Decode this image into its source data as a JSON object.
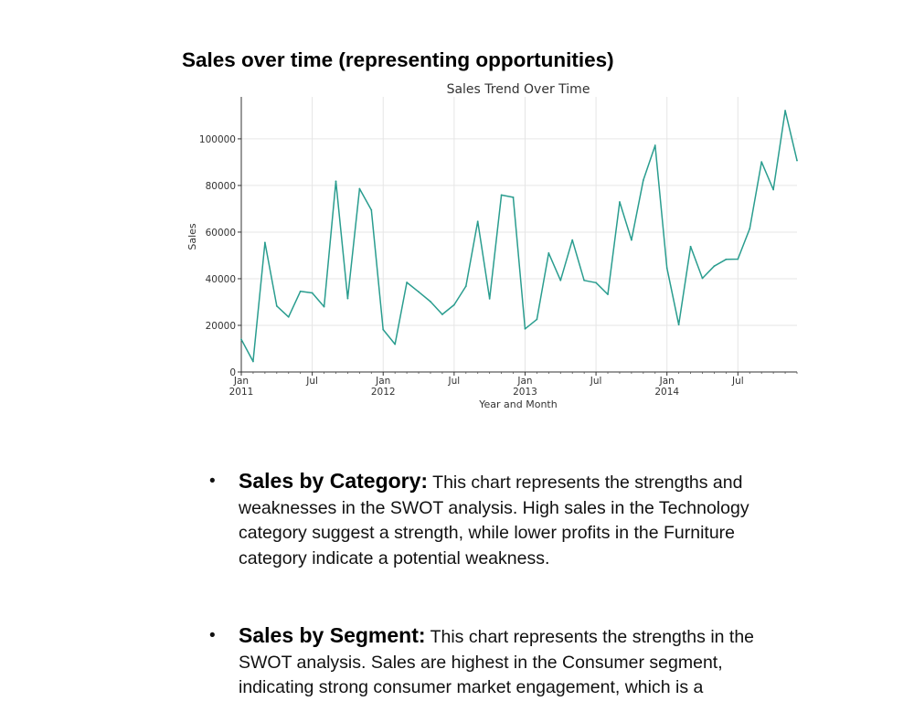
{
  "section_heading": "Sales over time (representing opportunities)",
  "chart_data": {
    "type": "line",
    "title": "Sales Trend Over Time",
    "xlabel": "Year and Month",
    "ylabel": "Sales",
    "x": [
      "2011-01",
      "2011-02",
      "2011-03",
      "2011-04",
      "2011-05",
      "2011-06",
      "2011-07",
      "2011-08",
      "2011-09",
      "2011-10",
      "2011-11",
      "2011-12",
      "2012-01",
      "2012-02",
      "2012-03",
      "2012-04",
      "2012-05",
      "2012-06",
      "2012-07",
      "2012-08",
      "2012-09",
      "2012-10",
      "2012-11",
      "2012-12",
      "2013-01",
      "2013-02",
      "2013-03",
      "2013-04",
      "2013-05",
      "2013-06",
      "2013-07",
      "2013-08",
      "2013-09",
      "2013-10",
      "2013-11",
      "2013-12",
      "2014-01",
      "2014-02",
      "2014-03",
      "2014-04",
      "2014-05",
      "2014-06",
      "2014-07",
      "2014-08",
      "2014-09",
      "2014-10",
      "2014-11",
      "2014-12"
    ],
    "series": [
      {
        "values": [
          14000,
          4500,
          55500,
          28300,
          23600,
          34600,
          33900,
          28000,
          81800,
          31500,
          78600,
          69500,
          18200,
          11900,
          38400,
          34400,
          30200,
          24700,
          28800,
          36800,
          64600,
          31400,
          75900,
          74900,
          18500,
          22600,
          51000,
          39300,
          56600,
          39300,
          38300,
          33300,
          72900,
          56600,
          82200,
          97200,
          44600,
          20300,
          53800,
          40200,
          45400,
          48300,
          48400,
          61500,
          90100,
          78200,
          112100,
          90700
        ],
        "color": "#2a9d8f"
      }
    ],
    "yticks": [
      0,
      20000,
      40000,
      60000,
      80000,
      100000
    ],
    "ytick_labels": [
      "0",
      "20000",
      "40000",
      "60000",
      "80000",
      "100000"
    ],
    "ylim": [
      0,
      118000
    ],
    "xticks": [
      {
        "month": 0,
        "label": "Jan",
        "sub": "2011"
      },
      {
        "month": 6,
        "label": "Jul",
        "sub": ""
      },
      {
        "month": 12,
        "label": "Jan",
        "sub": "2012"
      },
      {
        "month": 18,
        "label": "Jul",
        "sub": ""
      },
      {
        "month": 24,
        "label": "Jan",
        "sub": "2013"
      },
      {
        "month": 30,
        "label": "Jul",
        "sub": ""
      },
      {
        "month": 36,
        "label": "Jan",
        "sub": "2014"
      },
      {
        "month": 42,
        "label": "Jul",
        "sub": ""
      }
    ],
    "grid": true,
    "legend": "none"
  },
  "bullets": [
    {
      "lead": "Sales by Category:",
      "text": " This chart represents the strengths and weaknesses in the SWOT analysis. High sales in the Technology category suggest a strength, while lower profits in the Furniture category indicate a potential weakness."
    },
    {
      "lead": "Sales by Segment:",
      "text": " This chart represents the strengths in the SWOT analysis. Sales are highest in the Consumer segment, indicating strong consumer market engagement, which is a"
    }
  ]
}
